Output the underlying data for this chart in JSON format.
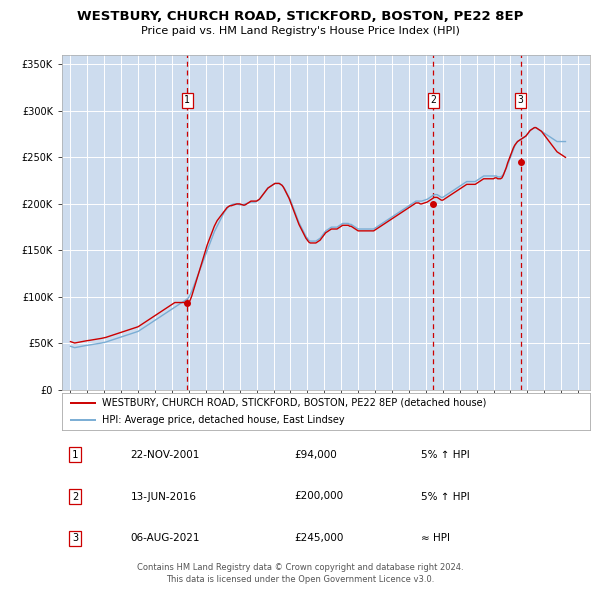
{
  "title": "WESTBURY, CHURCH ROAD, STICKFORD, BOSTON, PE22 8EP",
  "subtitle": "Price paid vs. HM Land Registry's House Price Index (HPI)",
  "title_fontsize": 9.5,
  "subtitle_fontsize": 8.0,
  "background_color": "#cddcee",
  "plot_bg_color": "#cddcee",
  "fig_bg_color": "#ffffff",
  "ylim": [
    0,
    360000
  ],
  "yticks": [
    0,
    50000,
    100000,
    150000,
    200000,
    250000,
    300000,
    350000
  ],
  "ytick_labels": [
    "£0",
    "£50K",
    "£100K",
    "£150K",
    "£200K",
    "£250K",
    "£300K",
    "£350K"
  ],
  "xlim_start": 1994.5,
  "xlim_end": 2025.7,
  "sale_dates": [
    2001.9,
    2016.45,
    2021.6
  ],
  "sale_prices": [
    94000,
    200000,
    245000
  ],
  "sale_labels": [
    "1",
    "2",
    "3"
  ],
  "sale_date_strs": [
    "22-NOV-2001",
    "13-JUN-2016",
    "06-AUG-2021"
  ],
  "sale_price_strs": [
    "£94,000",
    "£200,000",
    "£245,000"
  ],
  "sale_hpi_strs": [
    "5% ↑ HPI",
    "5% ↑ HPI",
    "≈ HPI"
  ],
  "red_line_color": "#cc0000",
  "blue_line_color": "#7aadd4",
  "dashed_line_color": "#cc0000",
  "legend1_label": "WESTBURY, CHURCH ROAD, STICKFORD, BOSTON, PE22 8EP (detached house)",
  "legend2_label": "HPI: Average price, detached house, East Lindsey",
  "footer1": "Contains HM Land Registry data © Crown copyright and database right 2024.",
  "footer2": "This data is licensed under the Open Government Licence v3.0.",
  "hpi_data": {
    "years": [
      1995.0,
      1995.083,
      1995.167,
      1995.25,
      1995.333,
      1995.417,
      1995.5,
      1995.583,
      1995.667,
      1995.75,
      1995.833,
      1995.917,
      1996.0,
      1996.083,
      1996.167,
      1996.25,
      1996.333,
      1996.417,
      1996.5,
      1996.583,
      1996.667,
      1996.75,
      1996.833,
      1996.917,
      1997.0,
      1997.083,
      1997.167,
      1997.25,
      1997.333,
      1997.417,
      1997.5,
      1997.583,
      1997.667,
      1997.75,
      1997.833,
      1997.917,
      1998.0,
      1998.083,
      1998.167,
      1998.25,
      1998.333,
      1998.417,
      1998.5,
      1998.583,
      1998.667,
      1998.75,
      1998.833,
      1998.917,
      1999.0,
      1999.083,
      1999.167,
      1999.25,
      1999.333,
      1999.417,
      1999.5,
      1999.583,
      1999.667,
      1999.75,
      1999.833,
      1999.917,
      2000.0,
      2000.083,
      2000.167,
      2000.25,
      2000.333,
      2000.417,
      2000.5,
      2000.583,
      2000.667,
      2000.75,
      2000.833,
      2000.917,
      2001.0,
      2001.083,
      2001.167,
      2001.25,
      2001.333,
      2001.417,
      2001.5,
      2001.583,
      2001.667,
      2001.75,
      2001.833,
      2001.917,
      2002.0,
      2002.083,
      2002.167,
      2002.25,
      2002.333,
      2002.417,
      2002.5,
      2002.583,
      2002.667,
      2002.75,
      2002.833,
      2002.917,
      2003.0,
      2003.083,
      2003.167,
      2003.25,
      2003.333,
      2003.417,
      2003.5,
      2003.583,
      2003.667,
      2003.75,
      2003.833,
      2003.917,
      2004.0,
      2004.083,
      2004.167,
      2004.25,
      2004.333,
      2004.417,
      2004.5,
      2004.583,
      2004.667,
      2004.75,
      2004.833,
      2004.917,
      2005.0,
      2005.083,
      2005.167,
      2005.25,
      2005.333,
      2005.417,
      2005.5,
      2005.583,
      2005.667,
      2005.75,
      2005.833,
      2005.917,
      2006.0,
      2006.083,
      2006.167,
      2006.25,
      2006.333,
      2006.417,
      2006.5,
      2006.583,
      2006.667,
      2006.75,
      2006.833,
      2006.917,
      2007.0,
      2007.083,
      2007.167,
      2007.25,
      2007.333,
      2007.417,
      2007.5,
      2007.583,
      2007.667,
      2007.75,
      2007.833,
      2007.917,
      2008.0,
      2008.083,
      2008.167,
      2008.25,
      2008.333,
      2008.417,
      2008.5,
      2008.583,
      2008.667,
      2008.75,
      2008.833,
      2008.917,
      2009.0,
      2009.083,
      2009.167,
      2009.25,
      2009.333,
      2009.417,
      2009.5,
      2009.583,
      2009.667,
      2009.75,
      2009.833,
      2009.917,
      2010.0,
      2010.083,
      2010.167,
      2010.25,
      2010.333,
      2010.417,
      2010.5,
      2010.583,
      2010.667,
      2010.75,
      2010.833,
      2010.917,
      2011.0,
      2011.083,
      2011.167,
      2011.25,
      2011.333,
      2011.417,
      2011.5,
      2011.583,
      2011.667,
      2011.75,
      2011.833,
      2011.917,
      2012.0,
      2012.083,
      2012.167,
      2012.25,
      2012.333,
      2012.417,
      2012.5,
      2012.583,
      2012.667,
      2012.75,
      2012.833,
      2012.917,
      2013.0,
      2013.083,
      2013.167,
      2013.25,
      2013.333,
      2013.417,
      2013.5,
      2013.583,
      2013.667,
      2013.75,
      2013.833,
      2013.917,
      2014.0,
      2014.083,
      2014.167,
      2014.25,
      2014.333,
      2014.417,
      2014.5,
      2014.583,
      2014.667,
      2014.75,
      2014.833,
      2014.917,
      2015.0,
      2015.083,
      2015.167,
      2015.25,
      2015.333,
      2015.417,
      2015.5,
      2015.583,
      2015.667,
      2015.75,
      2015.833,
      2015.917,
      2016.0,
      2016.083,
      2016.167,
      2016.25,
      2016.333,
      2016.417,
      2016.5,
      2016.583,
      2016.667,
      2016.75,
      2016.833,
      2016.917,
      2017.0,
      2017.083,
      2017.167,
      2017.25,
      2017.333,
      2017.417,
      2017.5,
      2017.583,
      2017.667,
      2017.75,
      2017.833,
      2017.917,
      2018.0,
      2018.083,
      2018.167,
      2018.25,
      2018.333,
      2018.417,
      2018.5,
      2018.583,
      2018.667,
      2018.75,
      2018.833,
      2018.917,
      2019.0,
      2019.083,
      2019.167,
      2019.25,
      2019.333,
      2019.417,
      2019.5,
      2019.583,
      2019.667,
      2019.75,
      2019.833,
      2019.917,
      2020.0,
      2020.083,
      2020.167,
      2020.25,
      2020.333,
      2020.417,
      2020.5,
      2020.583,
      2020.667,
      2020.75,
      2020.833,
      2020.917,
      2021.0,
      2021.083,
      2021.167,
      2021.25,
      2021.333,
      2021.417,
      2021.5,
      2021.583,
      2021.667,
      2021.75,
      2021.833,
      2021.917,
      2022.0,
      2022.083,
      2022.167,
      2022.25,
      2022.333,
      2022.417,
      2022.5,
      2022.583,
      2022.667,
      2022.75,
      2022.833,
      2022.917,
      2023.0,
      2023.083,
      2023.167,
      2023.25,
      2023.333,
      2023.417,
      2023.5,
      2023.583,
      2023.667,
      2023.75,
      2023.833,
      2023.917,
      2024.0,
      2024.083,
      2024.167,
      2024.25
    ],
    "hpi_values": [
      47000,
      46500,
      46000,
      45500,
      45800,
      46200,
      46500,
      46800,
      47000,
      47200,
      47500,
      47800,
      48000,
      48200,
      48500,
      48800,
      49000,
      49200,
      49500,
      49800,
      50000,
      50200,
      50500,
      50800,
      51000,
      51500,
      52000,
      52500,
      53000,
      53500,
      54000,
      54500,
      55000,
      55500,
      56000,
      56500,
      57000,
      57500,
      58000,
      58500,
      59000,
      59500,
      60000,
      60500,
      61000,
      61500,
      62000,
      62500,
      63000,
      64000,
      65000,
      66000,
      67000,
      68000,
      69000,
      70000,
      71000,
      72000,
      73000,
      74000,
      75000,
      76000,
      77000,
      78000,
      79000,
      80000,
      81000,
      82000,
      83000,
      84000,
      85000,
      86000,
      87000,
      88000,
      89000,
      90000,
      91000,
      92000,
      93000,
      94000,
      95000,
      96000,
      97000,
      98000,
      100000,
      103000,
      106000,
      110000,
      114000,
      118000,
      122000,
      126000,
      130000,
      134000,
      138000,
      142000,
      146000,
      150000,
      154000,
      158000,
      162000,
      166000,
      170000,
      173000,
      176000,
      179000,
      182000,
      185000,
      188000,
      191000,
      193000,
      195000,
      197000,
      198000,
      199000,
      199500,
      200000,
      200000,
      200000,
      199500,
      199000,
      199000,
      199000,
      199500,
      200000,
      200500,
      201000,
      201500,
      202000,
      202000,
      202000,
      202000,
      203000,
      204000,
      205000,
      207000,
      209000,
      211000,
      213000,
      215000,
      217000,
      218000,
      219000,
      220000,
      221000,
      222000,
      222000,
      222000,
      222000,
      221000,
      220000,
      218000,
      216000,
      213000,
      210000,
      207000,
      204000,
      200000,
      196000,
      192000,
      188000,
      184000,
      180000,
      177000,
      174000,
      171000,
      168000,
      165000,
      163000,
      161000,
      160000,
      160000,
      160000,
      160000,
      160000,
      161000,
      162000,
      163000,
      165000,
      167000,
      169000,
      171000,
      172000,
      173000,
      174000,
      175000,
      175000,
      175000,
      175000,
      175000,
      176000,
      177000,
      178000,
      179000,
      179000,
      179000,
      179000,
      179000,
      178000,
      178000,
      177000,
      176000,
      175000,
      174000,
      173000,
      173000,
      173000,
      173000,
      173000,
      173000,
      173000,
      173000,
      173000,
      173000,
      173000,
      173000,
      174000,
      175000,
      176000,
      177000,
      178000,
      179000,
      180000,
      181000,
      182000,
      183000,
      184000,
      185000,
      186000,
      187000,
      188000,
      189000,
      190000,
      191000,
      192000,
      193000,
      194000,
      195000,
      196000,
      197000,
      198000,
      199000,
      200000,
      201000,
      202000,
      203000,
      203000,
      203000,
      203000,
      203000,
      203500,
      204000,
      204500,
      205000,
      206000,
      207000,
      208000,
      209000,
      210000,
      210000,
      210000,
      209000,
      208000,
      207000,
      207000,
      208000,
      209000,
      210000,
      211000,
      212000,
      213000,
      214000,
      215000,
      216000,
      217000,
      218000,
      219000,
      220000,
      221000,
      222000,
      223000,
      224000,
      224000,
      224000,
      224000,
      224000,
      224000,
      224000,
      225000,
      226000,
      227000,
      228000,
      229000,
      230000,
      230000,
      230000,
      230000,
      230000,
      230000,
      230000,
      230000,
      230000,
      230000,
      229000,
      229000,
      229000,
      230000,
      232000,
      235000,
      238000,
      242000,
      246000,
      250000,
      254000,
      258000,
      262000,
      265000,
      267000,
      268000,
      269000,
      270000,
      271000,
      272000,
      273000,
      275000,
      277000,
      279000,
      280000,
      281000,
      282000,
      282000,
      281000,
      280000,
      279000,
      278000,
      277000,
      276000,
      275000,
      274000,
      273000,
      272000,
      271000,
      270000,
      269000,
      268000,
      267000,
      267000,
      267000,
      267000,
      267000,
      267000,
      267000
    ],
    "prop_values": [
      52000,
      51500,
      51000,
      50500,
      50800,
      51200,
      51500,
      51800,
      52000,
      52200,
      52500,
      52800,
      53000,
      53200,
      53500,
      53800,
      54000,
      54200,
      54500,
      54800,
      55000,
      55200,
      55500,
      55800,
      56000,
      56500,
      57000,
      57500,
      58000,
      58500,
      59000,
      59500,
      60000,
      60500,
      61000,
      61500,
      62000,
      62500,
      63000,
      63500,
      64000,
      64500,
      65000,
      65500,
      66000,
      66500,
      67000,
      67500,
      68000,
      69000,
      70000,
      71000,
      72000,
      73000,
      74000,
      75000,
      76000,
      77000,
      78000,
      79000,
      80000,
      81000,
      82000,
      83000,
      84000,
      85000,
      86000,
      87000,
      88000,
      89000,
      90000,
      91000,
      92000,
      93000,
      94000,
      94000,
      94000,
      94000,
      94000,
      94000,
      94000,
      94000,
      94000,
      94000,
      94000,
      97000,
      101000,
      106000,
      111000,
      116000,
      121000,
      126000,
      131000,
      136000,
      141000,
      146000,
      151000,
      156000,
      160000,
      164000,
      168000,
      172000,
      176000,
      179000,
      182000,
      184000,
      186000,
      188000,
      190000,
      192000,
      194000,
      196000,
      197000,
      198000,
      198000,
      198500,
      199000,
      199500,
      200000,
      200000,
      200000,
      199500,
      199000,
      198500,
      199000,
      200000,
      201000,
      202000,
      203000,
      203000,
      203000,
      203000,
      203000,
      204000,
      205000,
      207000,
      209000,
      211000,
      213000,
      215000,
      217000,
      218000,
      219000,
      220000,
      221000,
      222000,
      222000,
      222000,
      222000,
      221000,
      220000,
      218000,
      215000,
      212000,
      209000,
      206000,
      202000,
      198000,
      194000,
      190000,
      186000,
      182000,
      178000,
      175000,
      172000,
      169000,
      166000,
      163000,
      161000,
      159000,
      158000,
      158000,
      158000,
      158000,
      158000,
      159000,
      160000,
      161000,
      163000,
      165000,
      167000,
      169000,
      170000,
      171000,
      172000,
      173000,
      173000,
      173000,
      173000,
      173000,
      174000,
      175000,
      176000,
      177000,
      177000,
      177000,
      177000,
      177000,
      176000,
      176000,
      175000,
      174000,
      173000,
      172000,
      171000,
      171000,
      171000,
      171000,
      171000,
      171000,
      171000,
      171000,
      171000,
      171000,
      171000,
      171000,
      172000,
      173000,
      174000,
      175000,
      176000,
      177000,
      178000,
      179000,
      180000,
      181000,
      182000,
      183000,
      184000,
      185000,
      186000,
      187000,
      188000,
      189000,
      190000,
      191000,
      192000,
      193000,
      194000,
      195000,
      196000,
      197000,
      198000,
      199000,
      200000,
      201000,
      201000,
      201000,
      200000,
      200000,
      200500,
      201000,
      201500,
      202000,
      203000,
      204000,
      205000,
      206000,
      207000,
      207000,
      207000,
      206000,
      205000,
      204000,
      204000,
      205000,
      206000,
      207000,
      208000,
      209000,
      210000,
      211000,
      212000,
      213000,
      214000,
      215000,
      216000,
      217000,
      218000,
      219000,
      220000,
      221000,
      221000,
      221000,
      221000,
      221000,
      221000,
      221000,
      222000,
      223000,
      224000,
      225000,
      226000,
      227000,
      227000,
      227000,
      227000,
      227000,
      227000,
      227000,
      227000,
      228000,
      228000,
      227000,
      227000,
      227000,
      228000,
      231000,
      235000,
      239000,
      244000,
      248000,
      252000,
      256000,
      260000,
      263000,
      265000,
      267000,
      268000,
      269000,
      270000,
      271000,
      272000,
      273000,
      275000,
      277000,
      279000,
      280000,
      281000,
      282000,
      282000,
      281000,
      280000,
      279000,
      278000,
      276000,
      274000,
      272000,
      270000,
      268000,
      266000,
      264000,
      262000,
      260000,
      258000,
      256000,
      255000,
      254000,
      253000,
      252000,
      251000,
      250000
    ]
  }
}
